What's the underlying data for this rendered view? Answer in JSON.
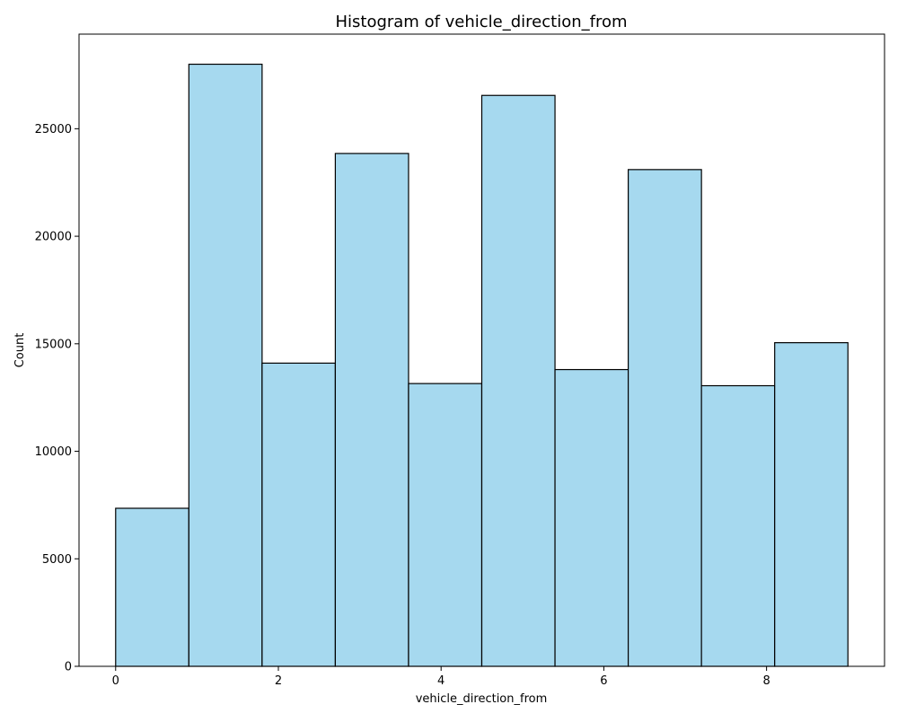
{
  "chart_data": {
    "type": "bar",
    "title": "Histogram of vehicle_direction_from",
    "xlabel": "vehicle_direction_from",
    "ylabel": "Count",
    "bins": [
      {
        "x0": 0.0,
        "x1": 0.9,
        "count": 7350
      },
      {
        "x0": 0.9,
        "x1": 1.8,
        "count": 28000
      },
      {
        "x0": 1.8,
        "x1": 2.7,
        "count": 14100
      },
      {
        "x0": 2.7,
        "x1": 3.6,
        "count": 23850
      },
      {
        "x0": 3.6,
        "x1": 4.5,
        "count": 13150
      },
      {
        "x0": 4.5,
        "x1": 5.4,
        "count": 26550
      },
      {
        "x0": 5.4,
        "x1": 6.3,
        "count": 13800
      },
      {
        "x0": 6.3,
        "x1": 7.2,
        "count": 23100
      },
      {
        "x0": 7.2,
        "x1": 8.1,
        "count": 13050
      },
      {
        "x0": 8.1,
        "x1": 9.0,
        "count": 15050
      }
    ],
    "xticks": [
      0,
      2,
      4,
      6,
      8
    ],
    "yticks": [
      0,
      5000,
      10000,
      15000,
      20000,
      25000
    ],
    "xlim": [
      -0.45,
      9.45
    ],
    "ylim": [
      0,
      29400
    ],
    "grid": false,
    "bar_color": "#a6d9ef",
    "edge_color": "#000000"
  }
}
